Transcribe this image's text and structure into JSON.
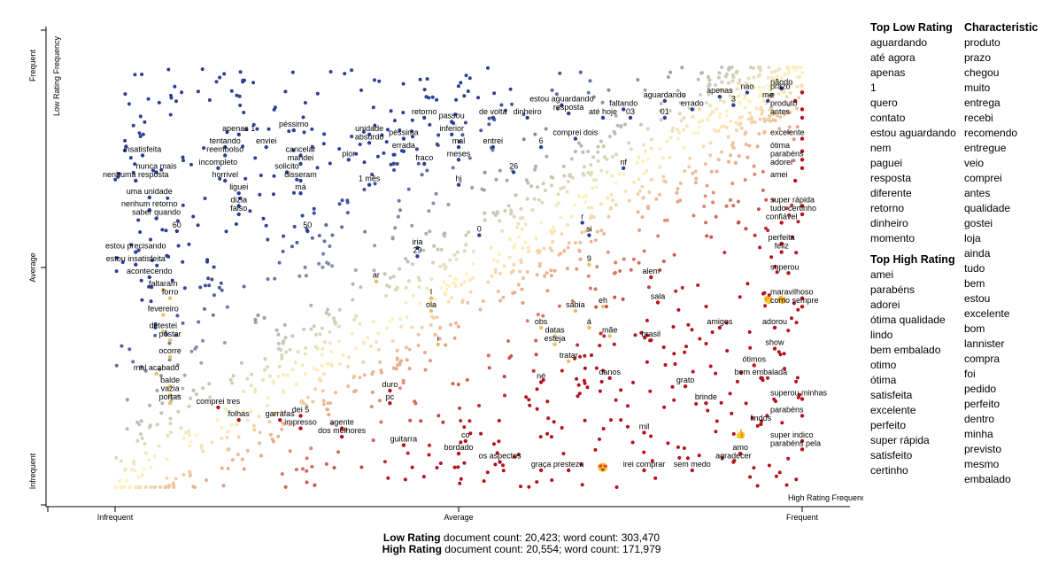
{
  "chart_data": {
    "type": "scatter",
    "y_axis": {
      "label": "Low Rating Frequency",
      "ticks": [
        "Frequent",
        "Average",
        "Infrequent"
      ]
    },
    "x_axis": {
      "label": "High Rating Frequency",
      "ticks": [
        "Infrequent",
        "Average",
        "Frequent"
      ]
    },
    "range": [
      0,
      1
    ],
    "colors": {
      "low": "#2c3f95",
      "mid": "#fff5c0",
      "high": "#b3121f"
    },
    "terms": [
      {
        "t": "insatisfeita",
        "x": 0.04,
        "y": 0.79,
        "c": "low"
      },
      {
        "t": "apenas 1",
        "x": 0.18,
        "y": 0.84,
        "c": "low"
      },
      {
        "t": "tentando",
        "x": 0.16,
        "y": 0.81,
        "c": "low"
      },
      {
        "t": "reembolso",
        "x": 0.16,
        "y": 0.79,
        "c": "low"
      },
      {
        "t": "incompleto",
        "x": 0.15,
        "y": 0.76,
        "c": "low"
      },
      {
        "t": "nunca mais",
        "x": 0.06,
        "y": 0.75,
        "c": "low"
      },
      {
        "t": "nenhuma resposta",
        "x": 0.03,
        "y": 0.73,
        "c": "low"
      },
      {
        "t": "horrivel",
        "x": 0.16,
        "y": 0.73,
        "c": "low"
      },
      {
        "t": "uma unidade",
        "x": 0.05,
        "y": 0.69,
        "c": "low"
      },
      {
        "t": "liguei",
        "x": 0.18,
        "y": 0.7,
        "c": "low"
      },
      {
        "t": "dizia",
        "x": 0.18,
        "y": 0.67,
        "c": "low"
      },
      {
        "t": "nenhum retorno",
        "x": 0.05,
        "y": 0.66,
        "c": "low"
      },
      {
        "t": "saber quando",
        "x": 0.06,
        "y": 0.64,
        "c": "low"
      },
      {
        "t": "falso",
        "x": 0.18,
        "y": 0.65,
        "c": "low"
      },
      {
        "t": "60",
        "x": 0.09,
        "y": 0.61,
        "c": "low"
      },
      {
        "t": "enviei",
        "x": 0.22,
        "y": 0.81,
        "c": "low"
      },
      {
        "t": "péssimo",
        "x": 0.26,
        "y": 0.85,
        "c": "low"
      },
      {
        "t": "cancelar",
        "x": 0.27,
        "y": 0.79,
        "c": "low"
      },
      {
        "t": "mandei",
        "x": 0.27,
        "y": 0.77,
        "c": "low"
      },
      {
        "t": "solicito",
        "x": 0.25,
        "y": 0.75,
        "c": "low"
      },
      {
        "t": "disseram",
        "x": 0.27,
        "y": 0.73,
        "c": "low"
      },
      {
        "t": "má",
        "x": 0.27,
        "y": 0.7,
        "c": "low"
      },
      {
        "t": "50",
        "x": 0.28,
        "y": 0.61,
        "c": "low"
      },
      {
        "t": "unidade",
        "x": 0.37,
        "y": 0.84,
        "c": "low"
      },
      {
        "t": "absurdo",
        "x": 0.37,
        "y": 0.82,
        "c": "low"
      },
      {
        "t": "pior",
        "x": 0.34,
        "y": 0.78,
        "c": "low"
      },
      {
        "t": "1 mês",
        "x": 0.37,
        "y": 0.72,
        "c": "low"
      },
      {
        "t": "retorno",
        "x": 0.45,
        "y": 0.88,
        "c": "low"
      },
      {
        "t": "péssima",
        "x": 0.42,
        "y": 0.83,
        "c": "low"
      },
      {
        "t": "errada",
        "x": 0.42,
        "y": 0.8,
        "c": "low"
      },
      {
        "t": "fraco",
        "x": 0.45,
        "y": 0.77,
        "c": "low"
      },
      {
        "t": "passou",
        "x": 0.49,
        "y": 0.87,
        "c": "low"
      },
      {
        "t": "inferior",
        "x": 0.49,
        "y": 0.84,
        "c": "low"
      },
      {
        "t": "mal",
        "x": 0.5,
        "y": 0.81,
        "c": "low"
      },
      {
        "t": "meses",
        "x": 0.5,
        "y": 0.78,
        "c": "low"
      },
      {
        "t": "hj",
        "x": 0.5,
        "y": 0.72,
        "c": "low"
      },
      {
        "t": "de volta",
        "x": 0.55,
        "y": 0.88,
        "c": "low"
      },
      {
        "t": "dinheiro",
        "x": 0.6,
        "y": 0.88,
        "c": "low"
      },
      {
        "t": "entrei",
        "x": 0.55,
        "y": 0.81,
        "c": "low"
      },
      {
        "t": "26",
        "x": 0.58,
        "y": 0.75,
        "c": "low"
      },
      {
        "t": "estou aguardando",
        "x": 0.65,
        "y": 0.91,
        "c": "low"
      },
      {
        "t": "resposta",
        "x": 0.66,
        "y": 0.89,
        "c": "low"
      },
      {
        "t": "comprei dois",
        "x": 0.67,
        "y": 0.83,
        "c": "low"
      },
      {
        "t": "6",
        "x": 0.62,
        "y": 0.81,
        "c": "low"
      },
      {
        "t": "até hoje",
        "x": 0.71,
        "y": 0.88,
        "c": "low"
      },
      {
        "t": "faltando",
        "x": 0.74,
        "y": 0.9,
        "c": "low"
      },
      {
        "t": "03",
        "x": 0.75,
        "y": 0.88,
        "c": "low"
      },
      {
        "t": "nf",
        "x": 0.74,
        "y": 0.76,
        "c": "low"
      },
      {
        "t": "aguardando",
        "x": 0.8,
        "y": 0.92,
        "c": "low"
      },
      {
        "t": "01",
        "x": 0.8,
        "y": 0.88,
        "c": "low"
      },
      {
        "t": "errado",
        "x": 0.84,
        "y": 0.9,
        "c": "low"
      },
      {
        "t": "apenas",
        "x": 0.88,
        "y": 0.93,
        "c": "low"
      },
      {
        "t": "3",
        "x": 0.9,
        "y": 0.91,
        "c": "low"
      },
      {
        "t": "nao",
        "x": 0.92,
        "y": 0.94,
        "c": "low"
      },
      {
        "t": "me",
        "x": 0.95,
        "y": 0.92,
        "c": "low"
      },
      {
        "t": "nãodo",
        "x": 0.97,
        "y": 0.95,
        "c": "low"
      },
      {
        "t": "estou precisando",
        "x": 0.03,
        "y": 0.56,
        "c": "low"
      },
      {
        "t": "estou insatisfeita",
        "x": 0.03,
        "y": 0.53,
        "c": "low"
      },
      {
        "t": "acontecendo",
        "x": 0.05,
        "y": 0.5,
        "c": "low"
      },
      {
        "t": "0",
        "x": 0.53,
        "y": 0.6,
        "c": "low"
      },
      {
        "t": "iria",
        "x": 0.44,
        "y": 0.57,
        "c": "low"
      },
      {
        "t": "29",
        "x": 0.44,
        "y": 0.55,
        "c": "low"
      },
      {
        "t": "r",
        "x": 0.68,
        "y": 0.63,
        "c": "low"
      },
      {
        "t": "si",
        "x": 0.69,
        "y": 0.6,
        "c": "low"
      },
      {
        "t": "9",
        "x": 0.69,
        "y": 0.53,
        "c": "mid"
      },
      {
        "t": "faltaram",
        "x": 0.07,
        "y": 0.47,
        "c": "mid"
      },
      {
        "t": "forro",
        "x": 0.08,
        "y": 0.45,
        "c": "mid"
      },
      {
        "t": "ar",
        "x": 0.38,
        "y": 0.49,
        "c": "mid"
      },
      {
        "t": "l",
        "x": 0.46,
        "y": 0.45,
        "c": "mid"
      },
      {
        "t": "ola",
        "x": 0.46,
        "y": 0.42,
        "c": "mid"
      },
      {
        "t": "fevereiro",
        "x": 0.07,
        "y": 0.41,
        "c": "mid"
      },
      {
        "t": "detestei",
        "x": 0.07,
        "y": 0.37,
        "c": "mid"
      },
      {
        "t": "postar",
        "x": 0.08,
        "y": 0.35,
        "c": "mid"
      },
      {
        "t": "ocorre",
        "x": 0.08,
        "y": 0.31,
        "c": "mid"
      },
      {
        "t": "i",
        "x": 0.47,
        "y": 0.34,
        "c": "mid"
      },
      {
        "t": "obs",
        "x": 0.62,
        "y": 0.38,
        "c": "mid"
      },
      {
        "t": "datas",
        "x": 0.64,
        "y": 0.36,
        "c": "mid"
      },
      {
        "t": "esteja",
        "x": 0.64,
        "y": 0.34,
        "c": "mid"
      },
      {
        "t": "sabia",
        "x": 0.67,
        "y": 0.42,
        "c": "mid"
      },
      {
        "t": "eh",
        "x": 0.71,
        "y": 0.43,
        "c": "mid"
      },
      {
        "t": "á",
        "x": 0.69,
        "y": 0.38,
        "c": "mid"
      },
      {
        "t": "mãe",
        "x": 0.72,
        "y": 0.36,
        "c": "mid"
      },
      {
        "t": "tratar",
        "x": 0.66,
        "y": 0.3,
        "c": "mid"
      },
      {
        "t": "mal acabado",
        "x": 0.06,
        "y": 0.27,
        "c": "mid"
      },
      {
        "t": "balde",
        "x": 0.08,
        "y": 0.24,
        "c": "mid"
      },
      {
        "t": "vazia",
        "x": 0.08,
        "y": 0.22,
        "c": "mid"
      },
      {
        "t": "portas",
        "x": 0.08,
        "y": 0.2,
        "c": "mid"
      },
      {
        "t": "comprei tres",
        "x": 0.15,
        "y": 0.19,
        "c": "high"
      },
      {
        "t": "folhas",
        "x": 0.18,
        "y": 0.16,
        "c": "high"
      },
      {
        "t": "garrafas",
        "x": 0.24,
        "y": 0.16,
        "c": "high"
      },
      {
        "t": "dei 5",
        "x": 0.27,
        "y": 0.17,
        "c": "high"
      },
      {
        "t": "impresso",
        "x": 0.27,
        "y": 0.14,
        "c": "high"
      },
      {
        "t": "duro",
        "x": 0.4,
        "y": 0.23,
        "c": "high"
      },
      {
        "t": "pc",
        "x": 0.4,
        "y": 0.2,
        "c": "high"
      },
      {
        "t": "agente",
        "x": 0.33,
        "y": 0.14,
        "c": "high"
      },
      {
        "t": "dos melhores",
        "x": 0.33,
        "y": 0.12,
        "c": "high"
      },
      {
        "t": "guitarra",
        "x": 0.42,
        "y": 0.1,
        "c": "high"
      },
      {
        "t": "co",
        "x": 0.51,
        "y": 0.11,
        "c": "high"
      },
      {
        "t": "bordado",
        "x": 0.5,
        "y": 0.08,
        "c": "high"
      },
      {
        "t": "os aspectos",
        "x": 0.56,
        "y": 0.06,
        "c": "high"
      },
      {
        "t": "graça",
        "x": 0.62,
        "y": 0.04,
        "c": "high"
      },
      {
        "t": "presteza",
        "x": 0.66,
        "y": 0.04,
        "c": "high"
      },
      {
        "t": "né",
        "x": 0.62,
        "y": 0.25,
        "c": "high"
      },
      {
        "t": "danos",
        "x": 0.72,
        "y": 0.26,
        "c": "high"
      },
      {
        "t": "alem",
        "x": 0.78,
        "y": 0.5,
        "c": "high"
      },
      {
        "t": "sala",
        "x": 0.79,
        "y": 0.44,
        "c": "high"
      },
      {
        "t": "brasil",
        "x": 0.78,
        "y": 0.35,
        "c": "high"
      },
      {
        "t": "amigos",
        "x": 0.88,
        "y": 0.38,
        "c": "high"
      },
      {
        "t": "grato",
        "x": 0.83,
        "y": 0.24,
        "c": "high"
      },
      {
        "t": "brinde",
        "x": 0.86,
        "y": 0.2,
        "c": "high"
      },
      {
        "t": "mil",
        "x": 0.77,
        "y": 0.13,
        "c": "high"
      },
      {
        "t": "irei comprar",
        "x": 0.77,
        "y": 0.04,
        "c": "high"
      },
      {
        "t": "sem medo",
        "x": 0.84,
        "y": 0.04,
        "c": "high"
      },
      {
        "t": "agradecer",
        "x": 0.9,
        "y": 0.06,
        "c": "high"
      },
      {
        "t": "amo",
        "x": 0.91,
        "y": 0.08,
        "c": "high"
      },
      {
        "t": "lindos",
        "x": 0.94,
        "y": 0.15,
        "c": "high"
      },
      {
        "t": "parabéns",
        "x": 1.0,
        "y": 0.17,
        "c": "high"
      },
      {
        "t": "superou minhas",
        "x": 1.0,
        "y": 0.21,
        "c": "high"
      },
      {
        "t": "bem embalada",
        "x": 0.94,
        "y": 0.26,
        "c": "high"
      },
      {
        "t": "ótimos",
        "x": 0.93,
        "y": 0.29,
        "c": "high"
      },
      {
        "t": "show",
        "x": 0.96,
        "y": 0.33,
        "c": "high"
      },
      {
        "t": "adorou",
        "x": 0.96,
        "y": 0.38,
        "c": "high"
      },
      {
        "t": "super indico",
        "x": 1.0,
        "y": 0.11,
        "c": "high"
      },
      {
        "t": "parabéns pela",
        "x": 1.0,
        "y": 0.09,
        "c": "high"
      },
      {
        "t": "como sempre",
        "x": 1.0,
        "y": 0.43,
        "c": "high"
      },
      {
        "t": "maravilhoso",
        "x": 1.0,
        "y": 0.45,
        "c": "high"
      },
      {
        "t": "superou",
        "x": 0.98,
        "y": 0.51,
        "c": "high"
      },
      {
        "t": "feliz",
        "x": 0.97,
        "y": 0.56,
        "c": "high"
      },
      {
        "t": "perfeita",
        "x": 0.97,
        "y": 0.58,
        "c": "high"
      },
      {
        "t": "confiável",
        "x": 0.97,
        "y": 0.63,
        "c": "high"
      },
      {
        "t": "tudo certinho",
        "x": 1.0,
        "y": 0.65,
        "c": "high"
      },
      {
        "t": "super rápida",
        "x": 1.0,
        "y": 0.67,
        "c": "high"
      },
      {
        "t": "amei",
        "x": 0.99,
        "y": 0.73,
        "c": "high"
      },
      {
        "t": "adorei",
        "x": 1.0,
        "y": 0.76,
        "c": "high"
      },
      {
        "t": "parabéns",
        "x": 1.0,
        "y": 0.78,
        "c": "high"
      },
      {
        "t": "ótima",
        "x": 1.0,
        "y": 0.8,
        "c": "high"
      },
      {
        "t": "excelente",
        "x": 1.0,
        "y": 0.83,
        "c": "high"
      },
      {
        "t": "antes",
        "x": 1.0,
        "y": 0.88,
        "c": "high"
      },
      {
        "t": "produto",
        "x": 1.0,
        "y": 0.9,
        "c": "high"
      },
      {
        "t": "e",
        "x": 0.99,
        "y": 0.92,
        "c": "high"
      },
      {
        "t": "prazo",
        "x": 1.0,
        "y": 0.94,
        "c": "high"
      }
    ],
    "emoji_marks": [
      {
        "t": "👏",
        "x": 0.95,
        "y": 0.44
      },
      {
        "t": "👏",
        "x": 0.97,
        "y": 0.44
      },
      {
        "t": "👍",
        "x": 0.91,
        "y": 0.12
      },
      {
        "t": "😍",
        "x": 0.71,
        "y": 0.04
      }
    ]
  },
  "sidebar": {
    "top_low_title": "Top Low Rating",
    "top_low": [
      "aguardando",
      "até agora",
      "apenas",
      "1",
      "quero",
      "contato",
      "estou aguardando",
      "nem",
      "paguei",
      "resposta",
      "diferente",
      "retorno",
      "dinheiro",
      "momento"
    ],
    "top_high_title": "Top High Rating",
    "top_high": [
      "amei",
      "parabéns",
      "adorei",
      "ótima qualidade",
      "lindo",
      "bem embalado",
      "otimo",
      "ótima",
      "satisfeita",
      "excelente",
      "perfeito",
      "super rápida",
      "satisfeito",
      "certinho"
    ],
    "characteristic_title": "Characteristic",
    "characteristic": [
      "produto",
      "prazo",
      "chegou",
      "muito",
      "entrega",
      "recebi",
      "recomendo",
      "entregue",
      "veio",
      "comprei",
      "antes",
      "qualidade",
      "gostei",
      "loja",
      "ainda",
      "tudo",
      "bem",
      "estou",
      "excelente",
      "bom",
      "lannister",
      "compra",
      "foi",
      "pedido",
      "perfeito",
      "dentro",
      "minha",
      "previsto",
      "mesmo",
      "embalado"
    ]
  },
  "footer": {
    "low_label": "Low Rating",
    "low_stats": " document count: 20,423; word count: 303,470",
    "high_label": "High Rating",
    "high_stats": " document count: 20,554; word count: 171,979"
  }
}
